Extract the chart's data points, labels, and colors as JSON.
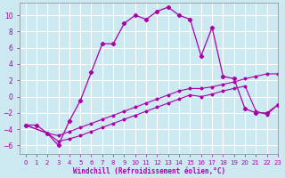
{
  "xlabel": "Windchill (Refroidissement éolien,°C)",
  "background_color": "#cce8f0",
  "grid_color": "#ffffff",
  "line_color": "#aa00aa",
  "xlim": [
    -0.5,
    23
  ],
  "ylim": [
    -7,
    11.5
  ],
  "xticks": [
    0,
    1,
    2,
    3,
    4,
    5,
    6,
    7,
    8,
    9,
    10,
    11,
    12,
    13,
    14,
    15,
    16,
    17,
    18,
    19,
    20,
    21,
    22,
    23
  ],
  "yticks": [
    -6,
    -4,
    -2,
    0,
    2,
    4,
    6,
    8,
    10
  ],
  "series1_x": [
    0,
    1,
    2,
    3,
    4,
    5,
    6,
    7,
    8,
    9,
    10,
    11,
    12,
    13,
    14,
    15,
    16,
    17,
    18,
    19,
    20,
    21,
    22,
    23
  ],
  "series1_y": [
    -3.5,
    -3.5,
    -4.5,
    -6,
    -3.0,
    -0.5,
    3.0,
    6.5,
    6.5,
    9.0,
    10.0,
    9.5,
    10.5,
    11.0,
    10.0,
    9.5,
    5.0,
    8.5,
    2.5,
    2.2,
    -1.5,
    -2.0,
    -2.0,
    -1.0
  ],
  "series2_x": [
    0,
    2,
    3,
    4,
    5,
    6,
    7,
    8,
    9,
    10,
    11,
    12,
    13,
    14,
    15,
    16,
    17,
    18,
    19,
    20,
    21,
    22,
    23
  ],
  "series2_y": [
    -3.5,
    -4.5,
    -4.8,
    -4.3,
    -3.8,
    -3.3,
    -2.8,
    -2.3,
    -1.8,
    -1.3,
    -0.8,
    -0.3,
    0.2,
    0.7,
    1.0,
    1.0,
    1.2,
    1.5,
    1.8,
    2.2,
    2.5,
    2.8,
    2.8
  ],
  "series3_x": [
    0,
    2,
    3,
    4,
    5,
    6,
    7,
    8,
    9,
    10,
    11,
    12,
    13,
    14,
    15,
    16,
    17,
    18,
    19,
    20,
    21,
    22,
    23
  ],
  "series3_y": [
    -3.5,
    -4.5,
    -5.5,
    -5.2,
    -4.8,
    -4.3,
    -3.8,
    -3.3,
    -2.8,
    -2.3,
    -1.8,
    -1.3,
    -0.8,
    -0.3,
    0.2,
    0.0,
    0.3,
    0.7,
    1.0,
    1.3,
    -1.8,
    -2.2,
    -1.0
  ]
}
